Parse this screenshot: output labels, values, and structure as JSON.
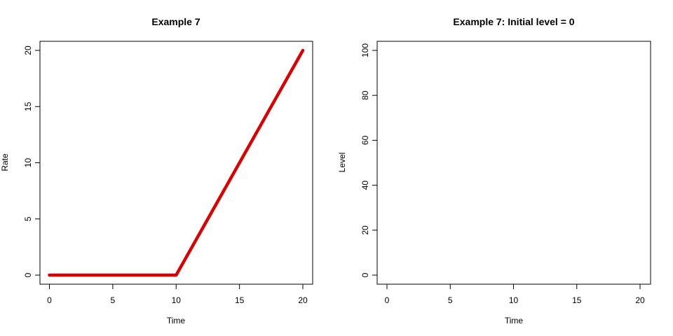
{
  "chart_data": [
    {
      "type": "line",
      "title": "Example 7",
      "xlabel": "Time",
      "ylabel": "Rate",
      "xlim": [
        0,
        20
      ],
      "ylim": [
        0,
        20
      ],
      "x_ticks": [
        0,
        5,
        10,
        15,
        20
      ],
      "y_ticks": [
        0,
        5,
        10,
        15,
        20
      ],
      "grid": false,
      "series": [
        {
          "color": "#dd0000",
          "x": [
            0,
            10,
            20
          ],
          "y": [
            0,
            0,
            20
          ]
        }
      ]
    },
    {
      "type": "line",
      "title": "Example 7: Initial level = 0",
      "xlabel": "Time",
      "ylabel": "Level",
      "xlim": [
        0,
        20
      ],
      "ylim": [
        0,
        100
      ],
      "x_ticks": [
        0,
        5,
        10,
        15,
        20
      ],
      "y_ticks": [
        0,
        20,
        40,
        60,
        80,
        100
      ],
      "grid": false,
      "series": []
    }
  ]
}
